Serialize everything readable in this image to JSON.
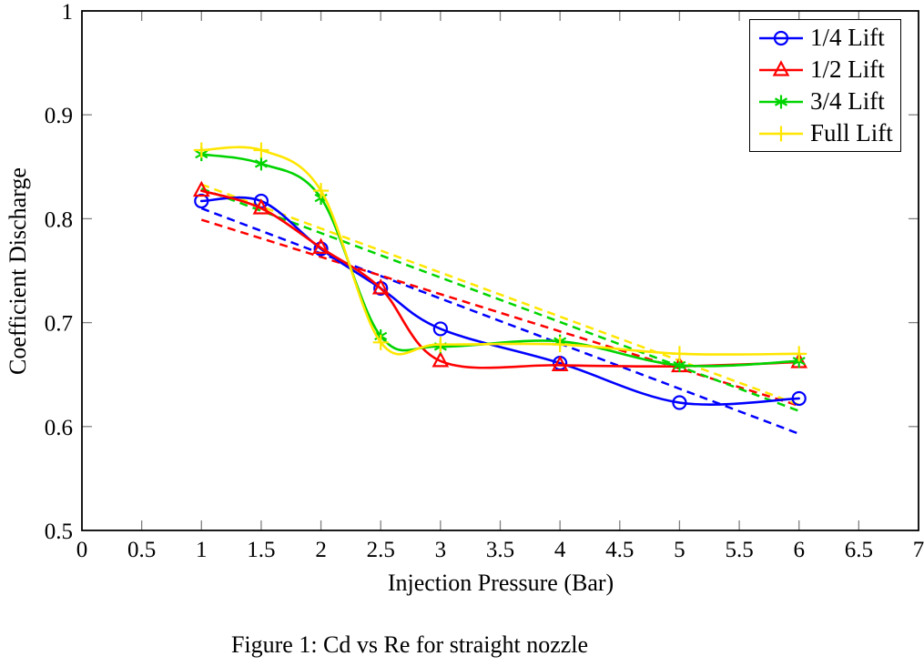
{
  "figure": {
    "caption": "Figure 1: Cd vs Re for straight nozzle"
  },
  "chart_data": {
    "type": "line",
    "title": "",
    "xlabel": "Injection Pressure (Bar)",
    "ylabel": "Coefficient Discharge",
    "xlim": [
      0,
      7
    ],
    "ylim": [
      0.5,
      1.0
    ],
    "grid": false,
    "legend_position": "top-right",
    "x_ticks": [
      0,
      0.5,
      1,
      1.5,
      2,
      2.5,
      3,
      3.5,
      4,
      4.5,
      5,
      5.5,
      6,
      6.5,
      7
    ],
    "x_tick_labels": [
      "0",
      "0.5",
      "1",
      "1.5",
      "2",
      "2.5",
      "3",
      "3.5",
      "4",
      "4.5",
      "5",
      "5.5",
      "6",
      "6.5",
      "7"
    ],
    "y_ticks": [
      0.5,
      0.6,
      0.7,
      0.8,
      0.9,
      1.0
    ],
    "y_tick_labels": [
      "0.5",
      "0.6",
      "0.7",
      "0.8",
      "0.9",
      "1"
    ],
    "x": [
      1,
      1.5,
      2,
      2.5,
      3,
      4,
      5,
      6
    ],
    "series": [
      {
        "name": "1/4 Lift",
        "color": "#0000ff",
        "marker": "circle",
        "line_style": "solid-smooth",
        "values": [
          0.817,
          0.817,
          0.771,
          0.733,
          0.694,
          0.661,
          0.623,
          0.627
        ],
        "trend": {
          "style": "dashed",
          "x1": 1,
          "y1": 0.81,
          "x2": 6,
          "y2": 0.593
        }
      },
      {
        "name": "1/2 Lift",
        "color": "#ff0000",
        "marker": "triangle",
        "line_style": "solid-smooth",
        "values": [
          0.827,
          0.81,
          0.772,
          0.733,
          0.663,
          0.659,
          0.658,
          0.662
        ],
        "trend": {
          "style": "dashed",
          "x1": 1,
          "y1": 0.799,
          "x2": 6,
          "y2": 0.62
        }
      },
      {
        "name": "3/4 Lift",
        "color": "#00d400",
        "marker": "asterisk",
        "line_style": "solid-smooth",
        "values": [
          0.862,
          0.853,
          0.82,
          0.687,
          0.677,
          0.682,
          0.659,
          0.663
        ],
        "trend": {
          "style": "dashed",
          "x1": 1,
          "y1": 0.829,
          "x2": 6,
          "y2": 0.615
        }
      },
      {
        "name": "Full Lift",
        "color": "#ffe600",
        "marker": "plus",
        "line_style": "solid-smooth",
        "values": [
          0.866,
          0.866,
          0.827,
          0.681,
          0.679,
          0.679,
          0.67,
          0.67
        ],
        "trend": {
          "style": "dashed",
          "x1": 1,
          "y1": 0.833,
          "x2": 6,
          "y2": 0.621
        }
      }
    ],
    "axis_color": "#000000",
    "tick_color": "#808080",
    "background_color": "#ffffff"
  }
}
